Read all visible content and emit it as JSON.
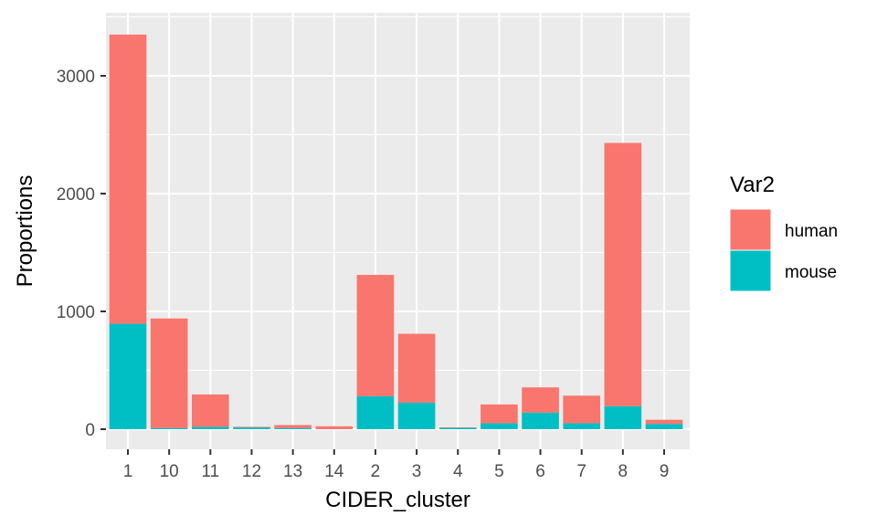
{
  "chart_data": {
    "type": "bar",
    "stacked": true,
    "xlabel": "CIDER_cluster",
    "ylabel": "Proportions",
    "categories": [
      "1",
      "10",
      "11",
      "12",
      "13",
      "14",
      "2",
      "3",
      "4",
      "5",
      "6",
      "7",
      "8",
      "9"
    ],
    "ylim": [
      0,
      3500
    ],
    "yticks": [
      0,
      1000,
      2000,
      3000
    ],
    "yticks_labels": [
      "0",
      "1000",
      "2000",
      "3000"
    ],
    "series": [
      {
        "name": "mouse",
        "color": "#00BFC4",
        "values": [
          895,
          10,
          20,
          15,
          10,
          0,
          280,
          225,
          12,
          50,
          140,
          50,
          195,
          45
        ]
      },
      {
        "name": "human",
        "color": "#F8766D",
        "values": [
          2455,
          930,
          275,
          5,
          25,
          25,
          1030,
          585,
          3,
          160,
          215,
          235,
          2235,
          35
        ]
      }
    ],
    "legend": {
      "title": "Var2",
      "position": "right",
      "entries": [
        {
          "label": "human",
          "color": "#F8766D"
        },
        {
          "label": "mouse",
          "color": "#00BFC4"
        }
      ]
    },
    "grid": true,
    "panel_background": "#EBEBEB"
  }
}
